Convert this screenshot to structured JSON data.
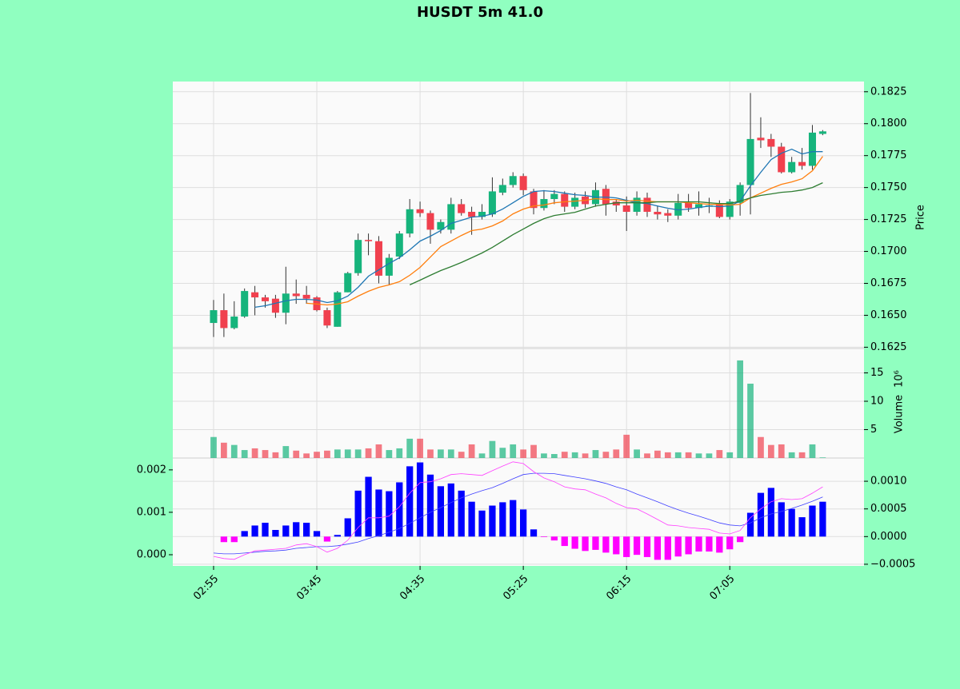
{
  "chart_data": {
    "type": "candlestick",
    "title": "HUSDT 5m 41.0",
    "categories": [
      "02:55",
      null,
      null,
      null,
      null,
      null,
      null,
      null,
      null,
      null,
      "03:45",
      null,
      null,
      null,
      null,
      null,
      null,
      null,
      null,
      null,
      "04:35",
      null,
      null,
      null,
      null,
      null,
      null,
      null,
      null,
      null,
      "05:25",
      null,
      null,
      null,
      null,
      null,
      null,
      null,
      null,
      null,
      "06:15",
      null,
      null,
      null,
      null,
      null,
      null,
      null,
      null,
      null,
      "07:05",
      null,
      null,
      null,
      null,
      null,
      null,
      null,
      null,
      null
    ],
    "xlim": [
      -3.95,
      63
    ],
    "grid": true,
    "up_color": "#16b47c",
    "down_color": "#f0404e",
    "ylabel": "Price",
    "ylim": [
      0.1624,
      0.1833
    ],
    "yticks": [
      {
        "value": 0.1625,
        "label": "0.1625"
      },
      {
        "value": 0.165,
        "label": "0.1650"
      },
      {
        "value": 0.1675,
        "label": "0.1675"
      },
      {
        "value": 0.17,
        "label": "0.1700"
      },
      {
        "value": 0.1725,
        "label": "0.1725"
      },
      {
        "value": 0.175,
        "label": "0.1750"
      },
      {
        "value": 0.1775,
        "label": "0.1775"
      },
      {
        "value": 0.18,
        "label": "0.1800"
      },
      {
        "value": 0.1825,
        "label": "0.1825"
      }
    ],
    "open": [
      0.1644,
      0.1654,
      0.164,
      0.1649,
      0.1668,
      0.1664,
      0.1663,
      0.1652,
      0.1667,
      0.1666,
      0.1664,
      0.1654,
      0.1641,
      0.1668,
      0.1683,
      0.1709,
      0.1708,
      0.1681,
      0.1696,
      0.1714,
      0.1733,
      0.173,
      0.1717,
      0.1717,
      0.1737,
      0.1731,
      0.1727,
      0.1729,
      0.1746,
      0.1752,
      0.1759,
      0.1747,
      0.1734,
      0.1741,
      0.1745,
      0.1735,
      0.1743,
      0.1737,
      0.1749,
      0.1739,
      0.1736,
      0.1731,
      0.1742,
      0.1731,
      0.173,
      0.1728,
      0.1738,
      0.1734,
      0.1735,
      0.1737,
      0.1727,
      0.1738,
      0.1752,
      0.1789,
      0.1788,
      0.1782,
      0.1762,
      0.177,
      0.1767,
      0.1792
    ],
    "high": [
      0.1662,
      0.1667,
      0.1661,
      0.1671,
      0.1673,
      0.1666,
      0.1666,
      0.1688,
      0.1678,
      0.1673,
      0.1665,
      0.1656,
      0.1669,
      0.1684,
      0.1714,
      0.1714,
      0.1712,
      0.1698,
      0.1716,
      0.1741,
      0.1739,
      0.1732,
      0.1725,
      0.1742,
      0.1741,
      0.1735,
      0.1737,
      0.1758,
      0.1757,
      0.1762,
      0.1761,
      0.1749,
      0.1748,
      0.1748,
      0.1747,
      0.1746,
      0.1747,
      0.1754,
      0.1752,
      0.1741,
      0.1743,
      0.1747,
      0.1746,
      0.1736,
      0.1733,
      0.1745,
      0.1745,
      0.1747,
      0.1742,
      0.174,
      0.1741,
      0.1754,
      0.1824,
      0.1805,
      0.1792,
      0.1785,
      0.1774,
      0.1781,
      0.1799,
      0.1795
    ],
    "low": [
      0.1633,
      0.1633,
      0.1639,
      0.1648,
      0.165,
      0.1656,
      0.1648,
      0.1643,
      0.1659,
      0.1659,
      0.1653,
      0.164,
      0.1641,
      0.1668,
      0.1681,
      0.1697,
      0.1675,
      0.1674,
      0.1694,
      0.1711,
      0.1727,
      0.1706,
      0.1714,
      0.1714,
      0.1728,
      0.1713,
      0.1725,
      0.1727,
      0.1744,
      0.175,
      0.1744,
      0.1729,
      0.1732,
      0.1737,
      0.1731,
      0.1733,
      0.1734,
      0.1735,
      0.1728,
      0.1731,
      0.1716,
      0.1728,
      0.1727,
      0.1725,
      0.1723,
      0.1725,
      0.1731,
      0.1728,
      0.173,
      0.1726,
      0.1725,
      0.1728,
      0.1729,
      0.1781,
      0.1774,
      0.1761,
      0.1761,
      0.1764,
      0.1764,
      0.1791
    ],
    "close": [
      0.1654,
      0.164,
      0.1649,
      0.1669,
      0.1664,
      0.1661,
      0.1652,
      0.1667,
      0.1665,
      0.1663,
      0.1654,
      0.1642,
      0.1668,
      0.1683,
      0.1709,
      0.1708,
      0.1681,
      0.1695,
      0.1714,
      0.1733,
      0.173,
      0.1717,
      0.1723,
      0.1737,
      0.173,
      0.1727,
      0.1731,
      0.1747,
      0.1752,
      0.1759,
      0.1748,
      0.1734,
      0.1741,
      0.1745,
      0.1735,
      0.1742,
      0.1737,
      0.1748,
      0.1737,
      0.1736,
      0.1731,
      0.1742,
      0.1731,
      0.1729,
      0.1728,
      0.1738,
      0.1734,
      0.1737,
      0.1736,
      0.1727,
      0.1739,
      0.1752,
      0.1788,
      0.1787,
      0.1782,
      0.1762,
      0.177,
      0.1767,
      0.1793,
      0.1794
    ],
    "lines": [
      {
        "color": "#1f77b4",
        "values": [
          null,
          null,
          null,
          null,
          0.16563,
          0.16575,
          0.16594,
          0.16613,
          0.16625,
          0.16625,
          0.16619,
          0.166,
          0.16613,
          0.1665,
          0.16719,
          0.16806,
          0.16856,
          0.16906,
          0.1695,
          0.17013,
          0.17081,
          0.17119,
          0.17163,
          0.17219,
          0.17244,
          0.17269,
          0.17275,
          0.17294,
          0.17331,
          0.17381,
          0.17431,
          0.17469,
          0.17475,
          0.17469,
          0.17456,
          0.17444,
          0.17438,
          0.17425,
          0.17425,
          0.17419,
          0.174,
          0.17381,
          0.17375,
          0.17356,
          0.17338,
          0.17325,
          0.17331,
          0.17344,
          0.17356,
          0.1735,
          0.17356,
          0.17394,
          0.17513,
          0.17619,
          0.17719,
          0.17769,
          0.178,
          0.17763,
          0.17781,
          0.17781
        ]
      },
      {
        "color": "#ff7f0e",
        "values": [
          null,
          null,
          null,
          null,
          null,
          null,
          null,
          null,
          null,
          0.16594,
          0.16588,
          0.16581,
          0.16588,
          0.16606,
          0.1665,
          0.16688,
          0.16719,
          0.16738,
          0.16763,
          0.16813,
          0.16875,
          0.16956,
          0.17038,
          0.17081,
          0.17125,
          0.17163,
          0.17175,
          0.172,
          0.17238,
          0.17294,
          0.17331,
          0.17356,
          0.17363,
          0.17381,
          0.17388,
          0.17394,
          0.174,
          0.17413,
          0.17406,
          0.17406,
          0.17394,
          0.174,
          0.17394,
          0.17388,
          0.17388,
          0.17388,
          0.17381,
          0.17375,
          0.17369,
          0.17369,
          0.17363,
          0.17369,
          0.17419,
          0.17456,
          0.17494,
          0.17525,
          0.17544,
          0.17569,
          0.17631,
          0.17744
        ]
      },
      {
        "color": "#2e7d32",
        "values": [
          null,
          null,
          null,
          null,
          null,
          null,
          null,
          null,
          null,
          null,
          null,
          null,
          null,
          null,
          null,
          null,
          null,
          null,
          null,
          0.16738,
          0.16775,
          0.16813,
          0.1685,
          0.16881,
          0.16913,
          0.1695,
          0.16988,
          0.17031,
          0.17081,
          0.17131,
          0.17175,
          0.17219,
          0.17256,
          0.17281,
          0.17294,
          0.17306,
          0.17331,
          0.17356,
          0.17369,
          0.17381,
          0.17381,
          0.17381,
          0.17381,
          0.17388,
          0.17388,
          0.17388,
          0.17388,
          0.17388,
          0.17381,
          0.17375,
          0.17375,
          0.17394,
          0.17419,
          0.17438,
          0.1745,
          0.17463,
          0.17469,
          0.17481,
          0.175,
          0.17538
        ]
      }
    ],
    "volume": {
      "ylabel": "Volume",
      "scale_label": "10⁶",
      "ylim": [
        0,
        19.3
      ],
      "yticks": [
        5,
        10,
        15
      ],
      "values": [
        3.7,
        2.7,
        2.3,
        1.4,
        1.7,
        1.4,
        1.0,
        2.1,
        1.3,
        0.8,
        1.1,
        1.3,
        1.5,
        1.5,
        1.5,
        1.7,
        2.4,
        1.4,
        1.7,
        3.4,
        3.4,
        1.5,
        1.5,
        1.5,
        1.1,
        2.4,
        0.8,
        3.0,
        1.8,
        2.4,
        1.5,
        2.3,
        0.8,
        0.7,
        1.1,
        1.0,
        0.8,
        1.4,
        1.1,
        1.5,
        4.1,
        1.5,
        0.8,
        1.3,
        1.0,
        1.0,
        1.0,
        0.8,
        0.8,
        1.4,
        1.0,
        17.2,
        13.1,
        3.7,
        2.3,
        2.4,
        1.0,
        1.0,
        2.4,
        0.1
      ]
    },
    "macd": {
      "ylim": [
        -0.000264,
        0.00228
      ],
      "yticks": [
        {
          "value": 0,
          "label": "0.000"
        },
        {
          "value": 0.001,
          "label": "0.001"
        },
        {
          "value": 0.002,
          "label": "0.002"
        }
      ],
      "y2lim": [
        -0.00053,
        0.00142
      ],
      "y2ticks": [
        {
          "value": -0.0005,
          "label": "−0.0005"
        },
        {
          "value": 0,
          "label": "0.0000"
        },
        {
          "value": 0.0005,
          "label": "0.0005"
        },
        {
          "value": 0.001,
          "label": "0.0010"
        }
      ],
      "positive_color": "#0000ff",
      "negative_color": "#ff00ff",
      "histogram": {
        "axis": "y2",
        "values": [
          null,
          -0.0001,
          -0.0001,
          0.0001,
          0.0002,
          0.00025,
          0.00012,
          0.0002,
          0.00026,
          0.00025,
          0.0001,
          -9e-05,
          3e-05,
          0.00033,
          0.00083,
          0.00108,
          0.00085,
          0.00082,
          0.00098,
          0.00127,
          0.00134,
          0.00112,
          0.00091,
          0.00096,
          0.00083,
          0.00063,
          0.00047,
          0.00056,
          0.00062,
          0.00066,
          0.00049,
          0.00013,
          -1e-05,
          -7e-05,
          -0.00017,
          -0.00022,
          -0.00026,
          -0.00024,
          -0.00029,
          -0.00032,
          -0.00037,
          -0.00033,
          -0.00037,
          -0.00042,
          -0.00042,
          -0.00036,
          -0.00032,
          -0.00027,
          -0.00027,
          -0.00029,
          -0.00023,
          -0.0001,
          0.00043,
          0.00079,
          0.00088,
          0.00062,
          0.0005,
          0.00035,
          0.00056,
          0.00063
        ]
      },
      "lines": [
        {
          "color": "#4040ff",
          "values": [
            4e-05,
            2e-05,
            2e-05,
            4e-05,
            6e-05,
            8e-05,
            9e-05,
            0.00011,
            0.00015,
            0.00017,
            0.00019,
            0.00019,
            0.00021,
            0.00025,
            0.0003,
            0.00038,
            0.00045,
            0.00053,
            0.00062,
            0.00074,
            0.00087,
            0.001,
            0.00111,
            0.00123,
            0.00134,
            0.00143,
            0.00151,
            0.00158,
            0.00168,
            0.00179,
            0.00189,
            0.00192,
            0.00192,
            0.00191,
            0.00187,
            0.00183,
            0.00179,
            0.00174,
            0.00168,
            0.0016,
            0.00153,
            0.00143,
            0.00134,
            0.00125,
            0.00115,
            0.00106,
            0.00098,
            0.00091,
            0.00083,
            0.00075,
            0.0007,
            0.00068,
            0.00075,
            0.00087,
            0.00096,
            0.00102,
            0.00109,
            0.00117,
            0.00126,
            0.00136
          ]
        },
        {
          "color": "#ff40ff",
          "values": [
            -4e-05,
            -9e-05,
            -0.00011,
            0,
            9e-05,
            0.00011,
            0.00013,
            0.00015,
            0.00023,
            0.00026,
            0.00019,
            6e-05,
            0.00015,
            0.00034,
            0.00064,
            0.00087,
            0.00087,
            0.00091,
            0.00113,
            0.00145,
            0.0017,
            0.00172,
            0.00179,
            0.00189,
            0.00191,
            0.00189,
            0.00187,
            0.00198,
            0.00209,
            0.00219,
            0.00215,
            0.00196,
            0.00181,
            0.00172,
            0.0016,
            0.00155,
            0.00153,
            0.00143,
            0.00134,
            0.00121,
            0.00111,
            0.00108,
            0.00096,
            0.00083,
            0.0007,
            0.00068,
            0.00064,
            0.00062,
            0.0006,
            0.00051,
            0.00049,
            0.00057,
            0.00087,
            0.00108,
            0.00125,
            0.00132,
            0.0013,
            0.00132,
            0.00145,
            0.0016
          ]
        }
      ]
    }
  }
}
